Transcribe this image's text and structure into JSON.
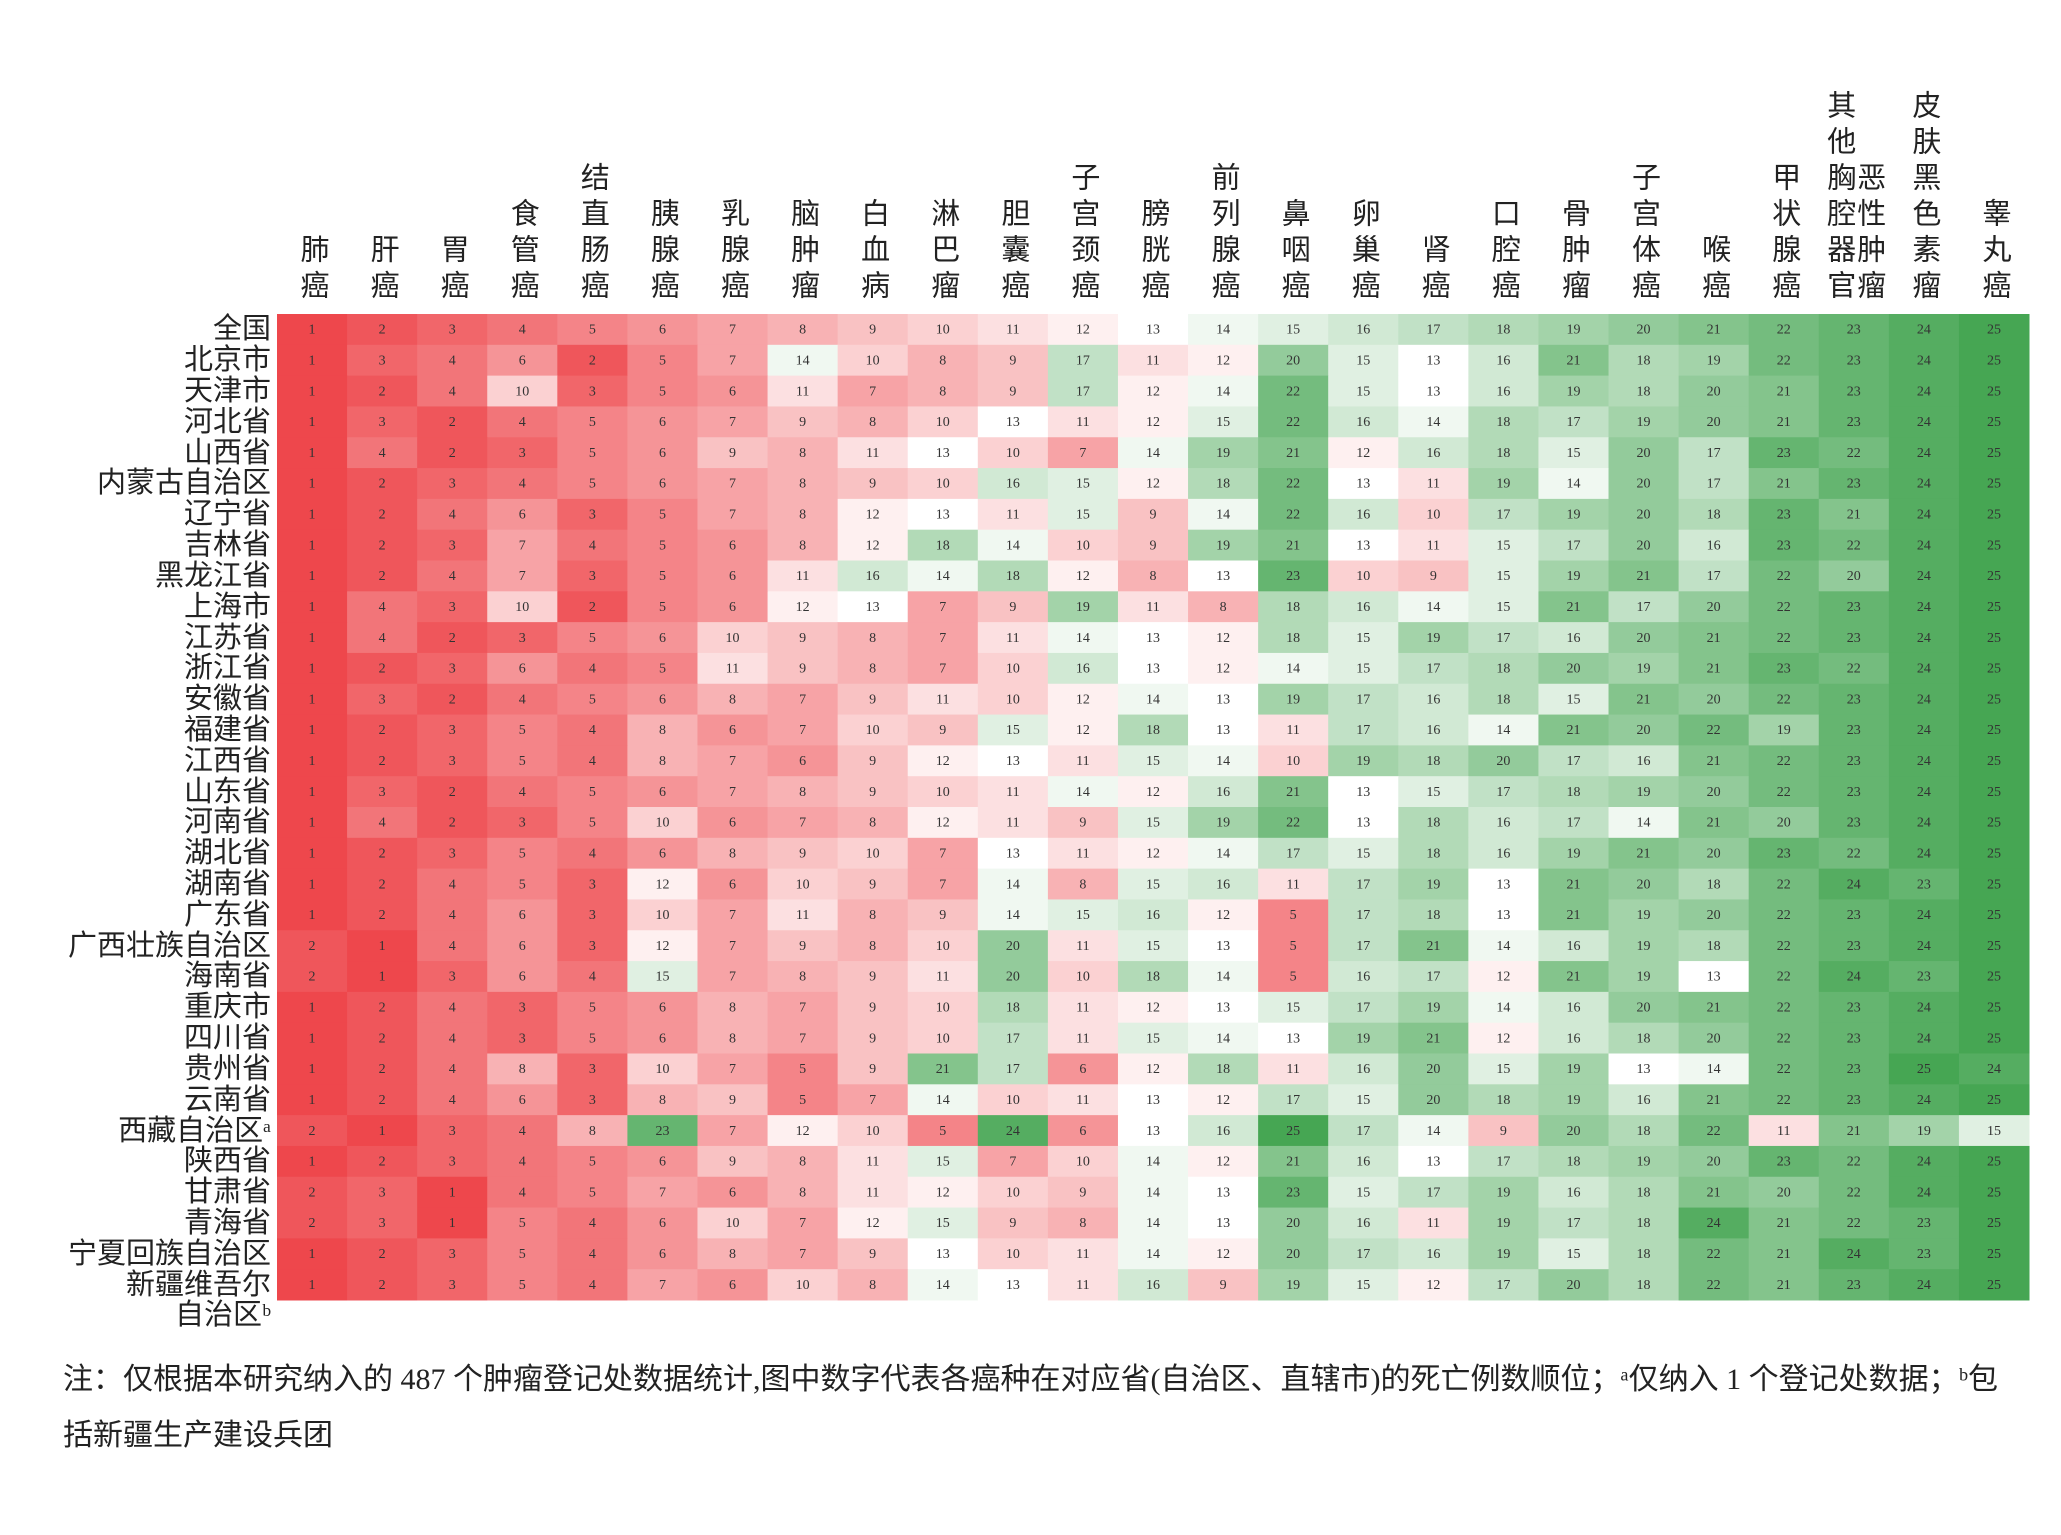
{
  "chart_data": {
    "type": "heatmap",
    "columns": [
      "肺癌",
      "肝癌",
      "胃癌",
      "食管癌",
      "结直肠癌",
      "胰腺癌",
      "乳腺癌",
      "脑肿瘤",
      "白血病",
      "淋巴瘤",
      "胆囊癌",
      "子宫颈癌",
      "膀胱癌",
      "前列腺癌",
      "鼻咽癌",
      "卵巢癌",
      "肾癌",
      "口腔癌",
      "骨肿瘤",
      "子宫体癌",
      "喉癌",
      "甲状腺癌",
      "其他胸腔器官恶性肿瘤",
      "皮肤黑色素瘤",
      "睾丸癌"
    ],
    "rows": [
      "全国",
      "北京市",
      "天津市",
      "河北省",
      "山西省",
      "内蒙古自治区",
      "辽宁省",
      "吉林省",
      "黑龙江省",
      "上海市",
      "江苏省",
      "浙江省",
      "安徽省",
      "福建省",
      "江西省",
      "山东省",
      "河南省",
      "湖北省",
      "湖南省",
      "广东省",
      "广西壮族自治区",
      "海南省",
      "重庆市",
      "四川省",
      "贵州省",
      "云南省",
      "西藏自治区ᵃ",
      "陕西省",
      "甘肃省",
      "青海省",
      "宁夏回族自治区",
      "新疆维吾尔自治区ᵇ"
    ],
    "values": [
      [
        1,
        2,
        3,
        4,
        5,
        6,
        7,
        8,
        9,
        10,
        11,
        12,
        13,
        14,
        15,
        16,
        17,
        18,
        19,
        20,
        21,
        22,
        23,
        24,
        25
      ],
      [
        1,
        3,
        4,
        6,
        2,
        5,
        7,
        14,
        10,
        8,
        9,
        17,
        11,
        12,
        20,
        15,
        13,
        16,
        21,
        18,
        19,
        22,
        23,
        24,
        25
      ],
      [
        1,
        2,
        4,
        10,
        3,
        5,
        6,
        11,
        7,
        8,
        9,
        17,
        12,
        14,
        22,
        15,
        13,
        16,
        19,
        18,
        20,
        21,
        23,
        24,
        25
      ],
      [
        1,
        3,
        2,
        4,
        5,
        6,
        7,
        9,
        8,
        10,
        13,
        11,
        12,
        15,
        22,
        16,
        14,
        18,
        17,
        19,
        20,
        21,
        23,
        24,
        25
      ],
      [
        1,
        4,
        2,
        3,
        5,
        6,
        9,
        8,
        11,
        13,
        10,
        7,
        14,
        19,
        21,
        12,
        16,
        18,
        15,
        20,
        17,
        23,
        22,
        24,
        25
      ],
      [
        1,
        2,
        3,
        4,
        5,
        6,
        7,
        8,
        9,
        10,
        16,
        15,
        12,
        18,
        22,
        13,
        11,
        19,
        14,
        20,
        17,
        21,
        23,
        24,
        25
      ],
      [
        1,
        2,
        4,
        6,
        3,
        5,
        7,
        8,
        12,
        13,
        11,
        15,
        9,
        14,
        22,
        16,
        10,
        17,
        19,
        20,
        18,
        23,
        21,
        24,
        25
      ],
      [
        1,
        2,
        3,
        7,
        4,
        5,
        6,
        8,
        12,
        18,
        14,
        10,
        9,
        19,
        21,
        13,
        11,
        15,
        17,
        20,
        16,
        23,
        22,
        24,
        25
      ],
      [
        1,
        2,
        4,
        7,
        3,
        5,
        6,
        11,
        16,
        14,
        18,
        12,
        8,
        13,
        23,
        10,
        9,
        15,
        19,
        21,
        17,
        22,
        20,
        24,
        25
      ],
      [
        1,
        4,
        3,
        10,
        2,
        5,
        6,
        12,
        13,
        7,
        9,
        19,
        11,
        8,
        18,
        16,
        14,
        15,
        21,
        17,
        20,
        22,
        23,
        24,
        25
      ],
      [
        1,
        4,
        2,
        3,
        5,
        6,
        10,
        9,
        8,
        7,
        11,
        14,
        13,
        12,
        18,
        15,
        19,
        17,
        16,
        20,
        21,
        22,
        23,
        24,
        25
      ],
      [
        1,
        2,
        3,
        6,
        4,
        5,
        11,
        9,
        8,
        7,
        10,
        16,
        13,
        12,
        14,
        15,
        17,
        18,
        20,
        19,
        21,
        23,
        22,
        24,
        25
      ],
      [
        1,
        3,
        2,
        4,
        5,
        6,
        8,
        7,
        9,
        11,
        10,
        12,
        14,
        13,
        19,
        17,
        16,
        18,
        15,
        21,
        20,
        22,
        23,
        24,
        25
      ],
      [
        1,
        2,
        3,
        5,
        4,
        8,
        6,
        7,
        10,
        9,
        15,
        12,
        18,
        13,
        11,
        17,
        16,
        14,
        21,
        20,
        22,
        19,
        23,
        24,
        25
      ],
      [
        1,
        2,
        3,
        5,
        4,
        8,
        7,
        6,
        9,
        12,
        13,
        11,
        15,
        14,
        10,
        19,
        18,
        20,
        17,
        16,
        21,
        22,
        23,
        24,
        25
      ],
      [
        1,
        3,
        2,
        4,
        5,
        6,
        7,
        8,
        9,
        10,
        11,
        14,
        12,
        16,
        21,
        13,
        15,
        17,
        18,
        19,
        20,
        22,
        23,
        24,
        25
      ],
      [
        1,
        4,
        2,
        3,
        5,
        10,
        6,
        7,
        8,
        12,
        11,
        9,
        15,
        19,
        22,
        13,
        18,
        16,
        17,
        14,
        21,
        20,
        23,
        24,
        25
      ],
      [
        1,
        2,
        3,
        5,
        4,
        6,
        8,
        9,
        10,
        7,
        13,
        11,
        12,
        14,
        17,
        15,
        18,
        16,
        19,
        21,
        20,
        23,
        22,
        24,
        25
      ],
      [
        1,
        2,
        4,
        5,
        3,
        12,
        6,
        10,
        9,
        7,
        14,
        8,
        15,
        16,
        11,
        17,
        19,
        13,
        21,
        20,
        18,
        22,
        24,
        23,
        25
      ],
      [
        1,
        2,
        4,
        6,
        3,
        10,
        7,
        11,
        8,
        9,
        14,
        15,
        16,
        12,
        5,
        17,
        18,
        13,
        21,
        19,
        20,
        22,
        23,
        24,
        25
      ],
      [
        2,
        1,
        4,
        6,
        3,
        12,
        7,
        9,
        8,
        10,
        20,
        11,
        15,
        13,
        5,
        17,
        21,
        14,
        16,
        19,
        18,
        22,
        23,
        24,
        25
      ],
      [
        2,
        1,
        3,
        6,
        4,
        15,
        7,
        8,
        9,
        11,
        20,
        10,
        18,
        14,
        5,
        16,
        17,
        12,
        21,
        19,
        13,
        22,
        24,
        23,
        25
      ],
      [
        1,
        2,
        4,
        3,
        5,
        6,
        8,
        7,
        9,
        10,
        18,
        11,
        12,
        13,
        15,
        17,
        19,
        14,
        16,
        20,
        21,
        22,
        23,
        24,
        25
      ],
      [
        1,
        2,
        4,
        3,
        5,
        6,
        8,
        7,
        9,
        10,
        17,
        11,
        15,
        14,
        13,
        19,
        21,
        12,
        16,
        18,
        20,
        22,
        23,
        24,
        25
      ],
      [
        1,
        2,
        4,
        8,
        3,
        10,
        7,
        5,
        9,
        21,
        17,
        6,
        12,
        18,
        11,
        16,
        20,
        15,
        19,
        13,
        14,
        22,
        23,
        25,
        24
      ],
      [
        1,
        2,
        4,
        6,
        3,
        8,
        9,
        5,
        7,
        14,
        10,
        11,
        13,
        12,
        17,
        15,
        20,
        18,
        19,
        16,
        21,
        22,
        23,
        24,
        25
      ],
      [
        2,
        1,
        3,
        4,
        8,
        23,
        7,
        12,
        10,
        5,
        24,
        6,
        13,
        16,
        25,
        17,
        14,
        9,
        20,
        18,
        22,
        11,
        21,
        19,
        15
      ],
      [
        1,
        2,
        3,
        4,
        5,
        6,
        9,
        8,
        11,
        15,
        7,
        10,
        14,
        12,
        21,
        16,
        13,
        17,
        18,
        19,
        20,
        23,
        22,
        24,
        25
      ],
      [
        2,
        3,
        1,
        4,
        5,
        7,
        6,
        8,
        11,
        12,
        10,
        9,
        14,
        13,
        23,
        15,
        17,
        19,
        16,
        18,
        21,
        20,
        22,
        24,
        25
      ],
      [
        2,
        3,
        1,
        5,
        4,
        6,
        10,
        7,
        12,
        15,
        9,
        8,
        14,
        13,
        20,
        16,
        11,
        19,
        17,
        18,
        24,
        21,
        22,
        23,
        25
      ],
      [
        1,
        2,
        3,
        5,
        4,
        6,
        8,
        7,
        9,
        13,
        10,
        11,
        14,
        12,
        20,
        17,
        16,
        19,
        15,
        18,
        22,
        21,
        24,
        23,
        25
      ],
      [
        1,
        2,
        3,
        5,
        4,
        7,
        6,
        10,
        8,
        14,
        13,
        11,
        16,
        9,
        19,
        15,
        12,
        17,
        20,
        18,
        22,
        21,
        23,
        24,
        25
      ]
    ],
    "colors": [
      "#ee474c",
      "#ffffff",
      "#46a653"
    ],
    "note": "注：仅根据本研究纳入的 487 个肿瘤登记处数据统计,图中数字代表各癌种在对应省(自治区、直辖市)的死亡例数顺位；ᵃ仅纳入 1 个登记处数据；ᵇ包括新疆生产建设兵团"
  }
}
